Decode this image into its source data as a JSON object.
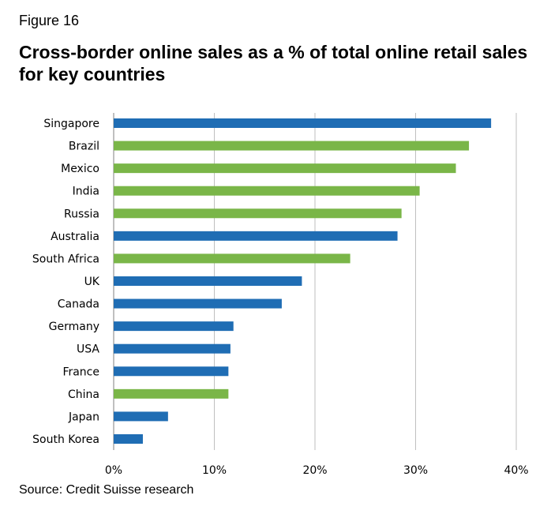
{
  "figure_label": "Figure 16",
  "source": "Source: Credit Suisse research",
  "colors": {
    "blue": "#1f6db4",
    "green": "#7ab648",
    "grid": "#bfbfbf",
    "axis": "#808080"
  },
  "chart_data": {
    "type": "bar",
    "orientation": "horizontal",
    "title": "Cross-border online sales as a % of total online retail sales for key countries",
    "xlabel": "",
    "ylabel": "",
    "xlim": [
      0,
      40
    ],
    "grid": true,
    "x_ticks": [
      0,
      10,
      20,
      30,
      40
    ],
    "x_tick_labels": [
      "0%",
      "10%",
      "20%",
      "30%",
      "40%"
    ],
    "categories": [
      "Singapore",
      "Brazil",
      "Mexico",
      "India",
      "Russia",
      "Australia",
      "South Africa",
      "UK",
      "Canada",
      "Germany",
      "USA",
      "France",
      "China",
      "Japan",
      "South Korea"
    ],
    "values": [
      37.5,
      35.3,
      34.0,
      30.4,
      28.6,
      28.2,
      23.5,
      18.7,
      16.7,
      11.9,
      11.6,
      11.4,
      11.4,
      5.4,
      2.9
    ],
    "bar_colors": [
      "blue",
      "green",
      "green",
      "green",
      "green",
      "blue",
      "green",
      "blue",
      "blue",
      "blue",
      "blue",
      "blue",
      "green",
      "blue",
      "blue"
    ]
  }
}
